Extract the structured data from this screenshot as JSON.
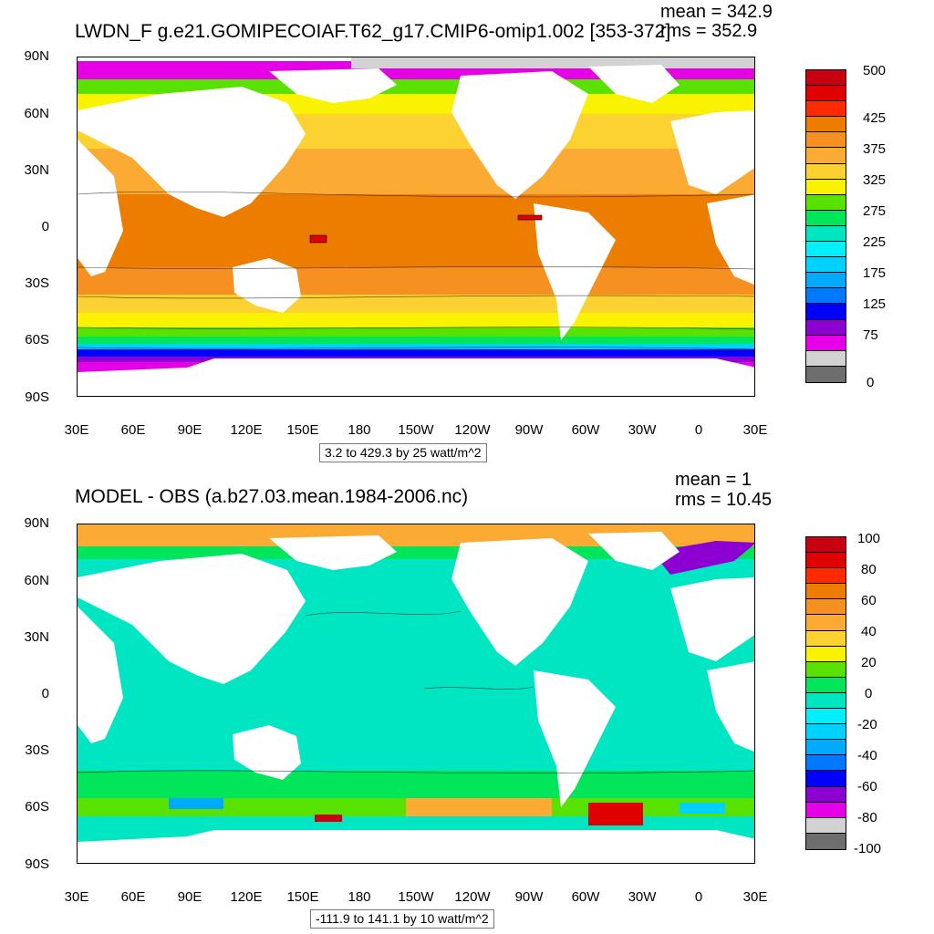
{
  "panels": [
    {
      "title": "LWDN_F g.e21.GOMIPECOIAF.T62_g17.CMIP6-omip1.002 [353-372]",
      "mean_text": "mean = 342.9",
      "rms_text": "rms = 352.9",
      "range_text": "3.2 to 429.3 by 25 watt/m^2",
      "lat_labels": [
        "90N",
        "60N",
        "30N",
        "0",
        "30S",
        "60S",
        "90S"
      ],
      "lon_labels": [
        "30E",
        "60E",
        "90E",
        "120E",
        "150E",
        "180",
        "150W",
        "120W",
        "90W",
        "60W",
        "30W",
        "0",
        "30E"
      ],
      "colorbar": {
        "colors": [
          "#c8000f",
          "#e10000",
          "#ff2a00",
          "#ec7d00",
          "#f69121",
          "#fbab33",
          "#fcd232",
          "#f9f200",
          "#59e100",
          "#00e55a",
          "#00e6c3",
          "#00f0ff",
          "#00d2ff",
          "#00aaff",
          "#0078ff",
          "#0000ff",
          "#8c00d2",
          "#e600e6",
          "#d2d2d2",
          "#6e6e6e"
        ],
        "labels": [
          "500",
          "425",
          "375",
          "325",
          "275",
          "225",
          "175",
          "125",
          "75",
          "0"
        ]
      }
    },
    {
      "title": "MODEL - OBS (a.b27.03.mean.1984-2006.nc)",
      "mean_text": "mean = 1",
      "rms_text": "rms = 10.45",
      "range_text": "-111.9 to 141.1 by 10 watt/m^2",
      "lat_labels": [
        "90N",
        "60N",
        "30N",
        "0",
        "30S",
        "60S",
        "90S"
      ],
      "lon_labels": [
        "30E",
        "60E",
        "90E",
        "120E",
        "150E",
        "180",
        "150W",
        "120W",
        "90W",
        "60W",
        "30W",
        "0",
        "30E"
      ],
      "colorbar": {
        "colors": [
          "#c8000f",
          "#e10000",
          "#ff2a00",
          "#ec7d00",
          "#f69121",
          "#fbab33",
          "#fcd232",
          "#f9f200",
          "#59e100",
          "#00e55a",
          "#00e6c3",
          "#00f0ff",
          "#00d2ff",
          "#00aaff",
          "#0078ff",
          "#0000ff",
          "#8c00d2",
          "#e600e6",
          "#d2d2d2",
          "#6e6e6e"
        ],
        "labels": [
          "100",
          "80",
          "60",
          "40",
          "20",
          "0",
          "-20",
          "-40",
          "-60",
          "-80",
          "-100"
        ]
      }
    }
  ]
}
